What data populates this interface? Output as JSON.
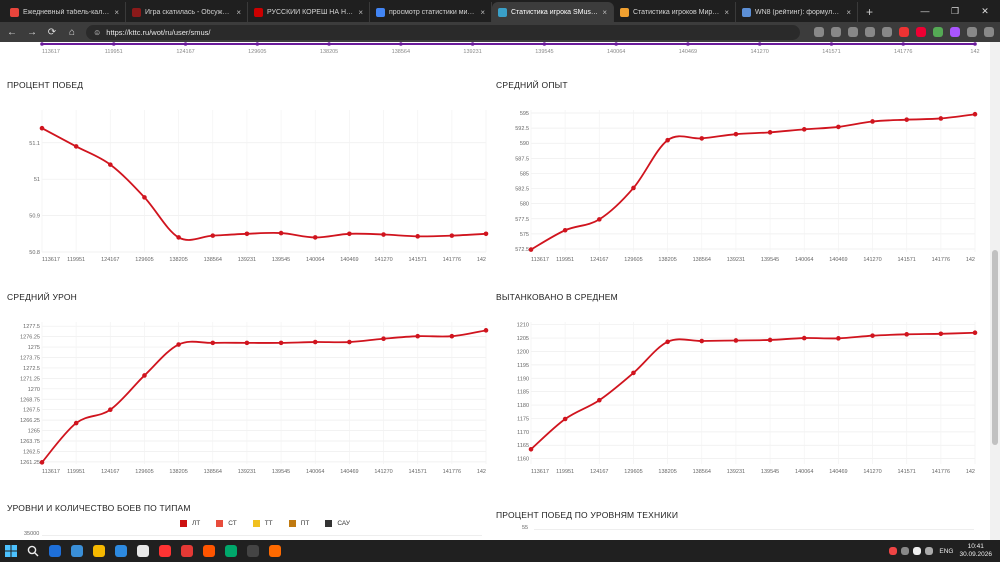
{
  "browser": {
    "tabs": [
      {
        "title": "Ежедневный табель-календарь",
        "color": "#e8453c",
        "active": false
      },
      {
        "title": "Игра скатилась - Обсуждение и...",
        "color": "#8b1a1a",
        "active": false
      },
      {
        "title": "РУССКИЙ КОРЕШ НА НЕМЕЦКО...",
        "color": "#cc0000",
        "active": false
      },
      {
        "title": "просмотр статистики мир танков",
        "color": "#4285f4",
        "active": false
      },
      {
        "title": "Статистика игрока SMus. KTTC - ...",
        "color": "#3aa0c8",
        "active": true
      },
      {
        "title": "Статистика игроков Мира Танко...",
        "color": "#f0a030",
        "active": false
      },
      {
        "title": "WN8 (рейтинг): формула и обсуж...",
        "color": "#5c8fd6",
        "active": false
      }
    ],
    "new_tab": "+",
    "window_controls": {
      "minimize": "—",
      "maximize": "❐",
      "close": "✕"
    },
    "address": "https://kttc.ru/wot/ru/user/smus/",
    "nav": {
      "back": "←",
      "forward": "→",
      "reload": "⟳",
      "home": "⌂",
      "site_info": "⊜"
    },
    "extension_colors": [
      "#888",
      "#888",
      "#888",
      "#888",
      "#888",
      "#e33",
      "#e03",
      "#5a5",
      "#a5f",
      "#888",
      "#888"
    ]
  },
  "top_axis": [
    "113617",
    "119951",
    "124167",
    "129605",
    "138205",
    "138564",
    "139231",
    "139545",
    "140064",
    "140469",
    "141270",
    "141571",
    "141776",
    "142"
  ],
  "charts": [
    {
      "title": "ПРОЦЕНТ ПОБЕД",
      "chart_data": {
        "type": "line",
        "x": [
          "113617",
          "119951",
          "124167",
          "129605",
          "138205",
          "138564",
          "139231",
          "139545",
          "140064",
          "140469",
          "141270",
          "141571",
          "141776",
          "142"
        ],
        "y": [
          51.14,
          51.09,
          51.04,
          50.95,
          50.84,
          50.845,
          50.85,
          50.852,
          50.84,
          50.85,
          50.848,
          50.843,
          50.845,
          50.85
        ],
        "yticks": [
          "50.8",
          "50.9",
          "51",
          "51.1"
        ],
        "ylim": [
          50.8,
          51.19
        ]
      }
    },
    {
      "title": "СРЕДНИЙ ОПЫТ",
      "chart_data": {
        "type": "line",
        "x": [
          "113617",
          "119951",
          "124167",
          "129605",
          "138205",
          "138564",
          "139231",
          "139545",
          "140064",
          "140469",
          "141270",
          "141571",
          "141776",
          "142"
        ],
        "y": [
          572.4,
          575.6,
          577.4,
          582.6,
          590.5,
          590.8,
          591.5,
          591.8,
          592.3,
          592.7,
          593.6,
          593.9,
          594.1,
          594.8
        ],
        "yticks": [
          "572.5",
          "575",
          "577.5",
          "580",
          "582.5",
          "585",
          "587.5",
          "590",
          "592.5",
          "595"
        ],
        "ylim": [
          572,
          595.5
        ]
      }
    },
    {
      "title": "СРЕДНИЙ УРОН",
      "chart_data": {
        "type": "line",
        "x": [
          "113617",
          "119951",
          "124167",
          "129605",
          "138205",
          "138564",
          "139231",
          "139545",
          "140064",
          "140469",
          "141270",
          "141571",
          "141776",
          "142"
        ],
        "y": [
          1261.2,
          1265.9,
          1267.5,
          1271.6,
          1275.3,
          1275.5,
          1275.5,
          1275.5,
          1275.6,
          1275.6,
          1276.0,
          1276.3,
          1276.3,
          1277.0
        ],
        "yticks": [
          "1261.25",
          "1262.5",
          "1263.75",
          "1265",
          "1266.25",
          "1267.5",
          "1268.75",
          "1270",
          "1271.25",
          "1272.5",
          "1273.75",
          "1275",
          "1276.25",
          "1277.5"
        ],
        "ylim": [
          1261,
          1278
        ]
      }
    },
    {
      "title": "ВЫТАНКОВАНО В СРЕДНЕМ",
      "chart_data": {
        "type": "line",
        "x": [
          "113617",
          "119951",
          "124167",
          "129605",
          "138205",
          "138564",
          "139231",
          "139545",
          "140064",
          "140469",
          "141270",
          "141571",
          "141776",
          "142"
        ],
        "y": [
          1163.5,
          1174.8,
          1181.8,
          1192.0,
          1203.6,
          1203.9,
          1204.1,
          1204.3,
          1205.0,
          1204.9,
          1205.9,
          1206.4,
          1206.6,
          1207.0
        ],
        "yticks": [
          "1160",
          "1165",
          "1170",
          "1175",
          "1180",
          "1185",
          "1190",
          "1195",
          "1200",
          "1205",
          "1210"
        ],
        "ylim": [
          1158,
          1211
        ]
      }
    }
  ],
  "bottom": {
    "types_title": "УРОВНИ И КОЛИЧЕСТВО БОЕВ ПО ТИПАМ",
    "legend": [
      {
        "label": "ЛТ",
        "color": "#cc1111"
      },
      {
        "label": "СТ",
        "color": "#e84c3c"
      },
      {
        "label": "ТТ",
        "color": "#f0c020"
      },
      {
        "label": "ПТ",
        "color": "#c07a10"
      },
      {
        "label": "САУ",
        "color": "#333333"
      }
    ],
    "types_tick": "35000",
    "levels_title": "ПРОЦЕНТ ПОБЕД ПО УРОВНЯМ ТЕХНИКИ",
    "levels_tick": "55"
  },
  "taskbar": {
    "icons": [
      "#1e6fd9",
      "#3a8fd8",
      "#f5b800",
      "#2d8ae0",
      "#e8e8e8",
      "#ff3333",
      "#e53935",
      "#ff5500",
      "#00a86b",
      "#444",
      "#ff6a00"
    ],
    "lang": "ENG",
    "time": "10:41",
    "date": "30.09.2026"
  }
}
